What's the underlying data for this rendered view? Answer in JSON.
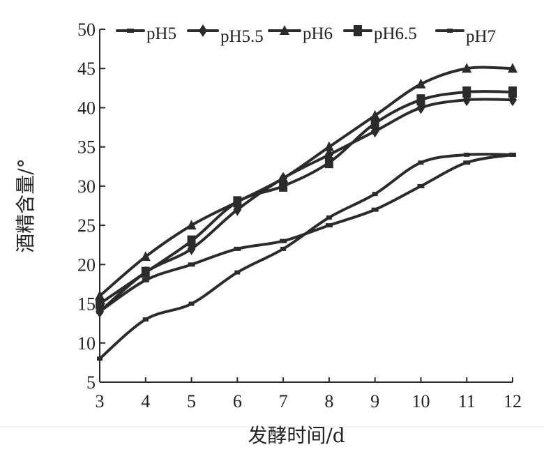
{
  "chart_data": {
    "type": "line",
    "title": "",
    "xlabel": "发酵时间/d",
    "ylabel": "酒精含量/°",
    "x": [
      3,
      4,
      5,
      6,
      7,
      8,
      9,
      10,
      11,
      12
    ],
    "xlim": [
      3,
      12
    ],
    "ylim": [
      5,
      50
    ],
    "yticks": [
      5,
      10,
      15,
      20,
      25,
      30,
      35,
      40,
      45,
      50
    ],
    "grid": false,
    "legend_position": "top",
    "series": [
      {
        "name": "pH5",
        "marker": "dash",
        "values": [
          14,
          18,
          20,
          22,
          23,
          25,
          27,
          30,
          33,
          34
        ]
      },
      {
        "name": "pH5.5",
        "marker": "diamond",
        "values": [
          14,
          19,
          22,
          27,
          31,
          34,
          37,
          40,
          41,
          41
        ]
      },
      {
        "name": "pH6",
        "marker": "triangle",
        "values": [
          16,
          21,
          25,
          28,
          31,
          35,
          39,
          43,
          45,
          45
        ]
      },
      {
        "name": "pH6.5",
        "marker": "square",
        "values": [
          15,
          19,
          23,
          28,
          30,
          33,
          38,
          41,
          42,
          42
        ]
      },
      {
        "name": "pH7",
        "marker": "small",
        "values": [
          8,
          13,
          15,
          19,
          22,
          26,
          29,
          33,
          34,
          34
        ]
      }
    ]
  },
  "colors": {
    "line": "#2b2b2b",
    "text": "#222222",
    "background": "#ffffff"
  }
}
